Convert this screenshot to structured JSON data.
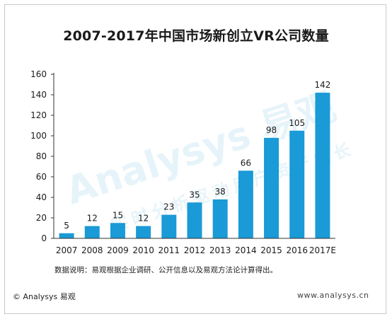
{
  "chart_data": {
    "type": "bar",
    "title": "2007-2017年中国市场新创立VR公司数量",
    "categories": [
      "2007",
      "2008",
      "2009",
      "2010",
      "2011",
      "2012",
      "2013",
      "2014",
      "2015",
      "2016",
      "2017E"
    ],
    "values": [
      5,
      12,
      15,
      12,
      23,
      35,
      38,
      66,
      98,
      105,
      142
    ],
    "ylim": [
      0,
      160
    ],
    "yticks": [
      0,
      20,
      40,
      60,
      80,
      100,
      120,
      140,
      160
    ],
    "xlabel": "",
    "ylabel": "",
    "grid": false,
    "bar_color": "#1a9ad6"
  },
  "note": "数据说明：易观根据企业调研、公开信息以及易观方法论计算得出。",
  "footer": {
    "copyright": "© Analysys 易观",
    "website": "www.analysys.cn"
  },
  "watermark": {
    "brand": "Analysys 易观",
    "slogan": "实时分析驱动用户资产成长"
  }
}
